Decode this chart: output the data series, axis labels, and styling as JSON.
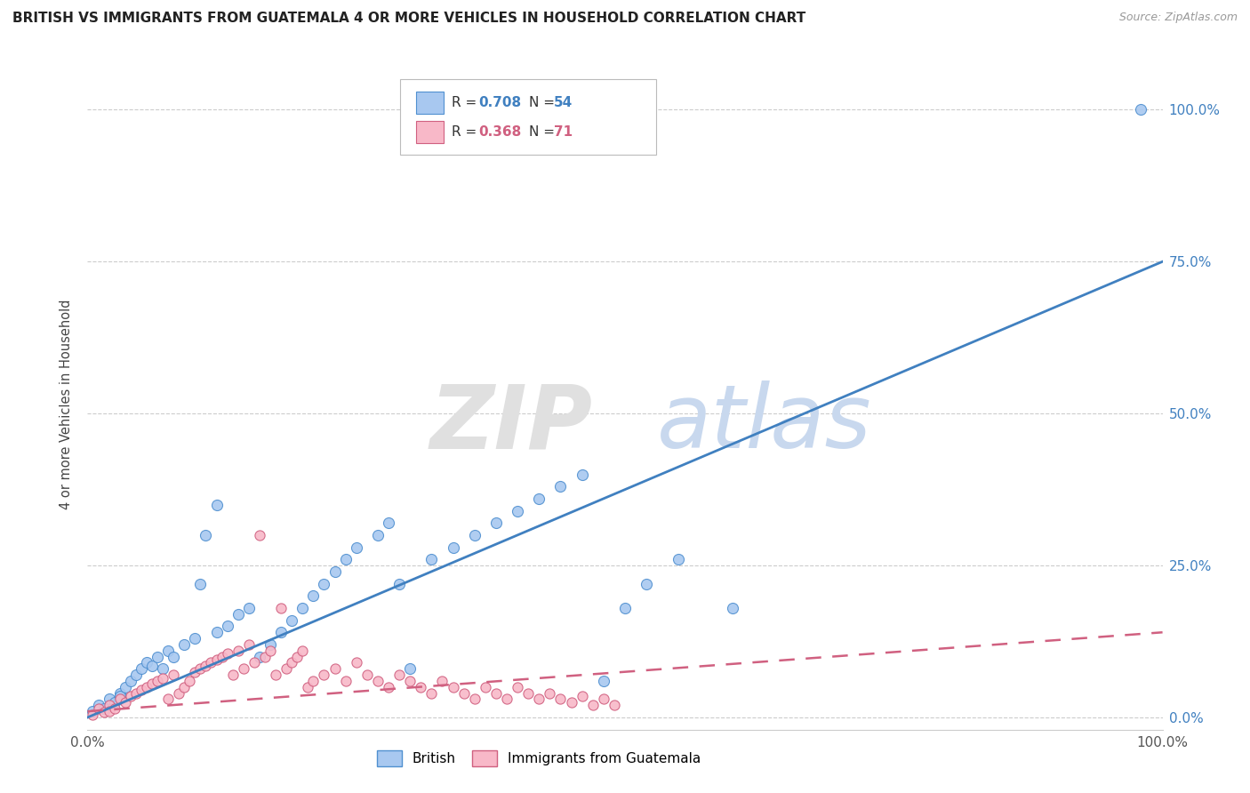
{
  "title": "BRITISH VS IMMIGRANTS FROM GUATEMALA 4 OR MORE VEHICLES IN HOUSEHOLD CORRELATION CHART",
  "source": "Source: ZipAtlas.com",
  "ylabel": "4 or more Vehicles in Household",
  "xlim": [
    0,
    100
  ],
  "ylim": [
    -2,
    105
  ],
  "ytick_values": [
    0,
    25,
    50,
    75,
    100
  ],
  "ytick_labels": [
    "0.0%",
    "25.0%",
    "50.0%",
    "75.0%",
    "100.0%"
  ],
  "xtick_labels": [
    "0.0%",
    "100.0%"
  ],
  "grid_color": "#cccccc",
  "british_color": "#a8c8f0",
  "british_edge_color": "#5090d0",
  "guatemala_color": "#f8b8c8",
  "guatemala_edge_color": "#d06080",
  "british_R": 0.708,
  "british_N": 54,
  "guatemala_R": 0.368,
  "guatemala_N": 71,
  "british_line_color": "#4080c0",
  "guatemala_line_color": "#d06080",
  "british_line_x": [
    0,
    100
  ],
  "british_line_y": [
    0,
    75
  ],
  "guatemala_line_x": [
    0,
    100
  ],
  "guatemala_line_y": [
    1,
    14
  ],
  "british_scatter_x": [
    0.5,
    1.0,
    1.5,
    2.0,
    2.5,
    3.0,
    3.0,
    3.5,
    4.0,
    4.5,
    5.0,
    5.5,
    6.0,
    6.5,
    7.0,
    7.5,
    8.0,
    9.0,
    10.0,
    10.5,
    11.0,
    12.0,
    12.0,
    13.0,
    14.0,
    15.0,
    16.0,
    17.0,
    18.0,
    19.0,
    20.0,
    21.0,
    22.0,
    23.0,
    24.0,
    25.0,
    27.0,
    28.0,
    29.0,
    30.0,
    32.0,
    34.0,
    36.0,
    38.0,
    40.0,
    42.0,
    44.0,
    46.0,
    48.0,
    50.0,
    52.0,
    55.0,
    60.0,
    98.0
  ],
  "british_scatter_y": [
    1.0,
    2.0,
    1.5,
    3.0,
    2.5,
    4.0,
    3.5,
    5.0,
    6.0,
    7.0,
    8.0,
    9.0,
    8.5,
    10.0,
    8.0,
    11.0,
    10.0,
    12.0,
    13.0,
    22.0,
    30.0,
    35.0,
    14.0,
    15.0,
    17.0,
    18.0,
    10.0,
    12.0,
    14.0,
    16.0,
    18.0,
    20.0,
    22.0,
    24.0,
    26.0,
    28.0,
    30.0,
    32.0,
    22.0,
    8.0,
    26.0,
    28.0,
    30.0,
    32.0,
    34.0,
    36.0,
    38.0,
    40.0,
    6.0,
    18.0,
    22.0,
    26.0,
    18.0,
    100.0
  ],
  "guatemala_scatter_x": [
    0.5,
    1.0,
    1.5,
    2.0,
    2.0,
    2.5,
    3.0,
    3.5,
    4.0,
    4.5,
    5.0,
    5.5,
    6.0,
    6.5,
    7.0,
    7.5,
    8.0,
    8.5,
    9.0,
    9.5,
    10.0,
    10.5,
    11.0,
    11.5,
    12.0,
    12.5,
    13.0,
    13.5,
    14.0,
    14.5,
    15.0,
    15.5,
    16.0,
    16.5,
    17.0,
    17.5,
    18.0,
    18.5,
    19.0,
    19.5,
    20.0,
    20.5,
    21.0,
    22.0,
    23.0,
    24.0,
    25.0,
    26.0,
    27.0,
    28.0,
    29.0,
    30.0,
    31.0,
    32.0,
    33.0,
    34.0,
    35.0,
    36.0,
    37.0,
    38.0,
    39.0,
    40.0,
    41.0,
    42.0,
    43.0,
    44.0,
    45.0,
    46.0,
    47.0,
    48.0,
    49.0
  ],
  "guatemala_scatter_y": [
    0.5,
    1.5,
    0.8,
    2.0,
    1.0,
    1.5,
    3.0,
    2.5,
    3.5,
    4.0,
    4.5,
    5.0,
    5.5,
    6.0,
    6.5,
    3.0,
    7.0,
    4.0,
    5.0,
    6.0,
    7.5,
    8.0,
    8.5,
    9.0,
    9.5,
    10.0,
    10.5,
    7.0,
    11.0,
    8.0,
    12.0,
    9.0,
    30.0,
    10.0,
    11.0,
    7.0,
    18.0,
    8.0,
    9.0,
    10.0,
    11.0,
    5.0,
    6.0,
    7.0,
    8.0,
    6.0,
    9.0,
    7.0,
    6.0,
    5.0,
    7.0,
    6.0,
    5.0,
    4.0,
    6.0,
    5.0,
    4.0,
    3.0,
    5.0,
    4.0,
    3.0,
    5.0,
    4.0,
    3.0,
    4.0,
    3.0,
    2.5,
    3.5,
    2.0,
    3.0,
    2.0
  ]
}
